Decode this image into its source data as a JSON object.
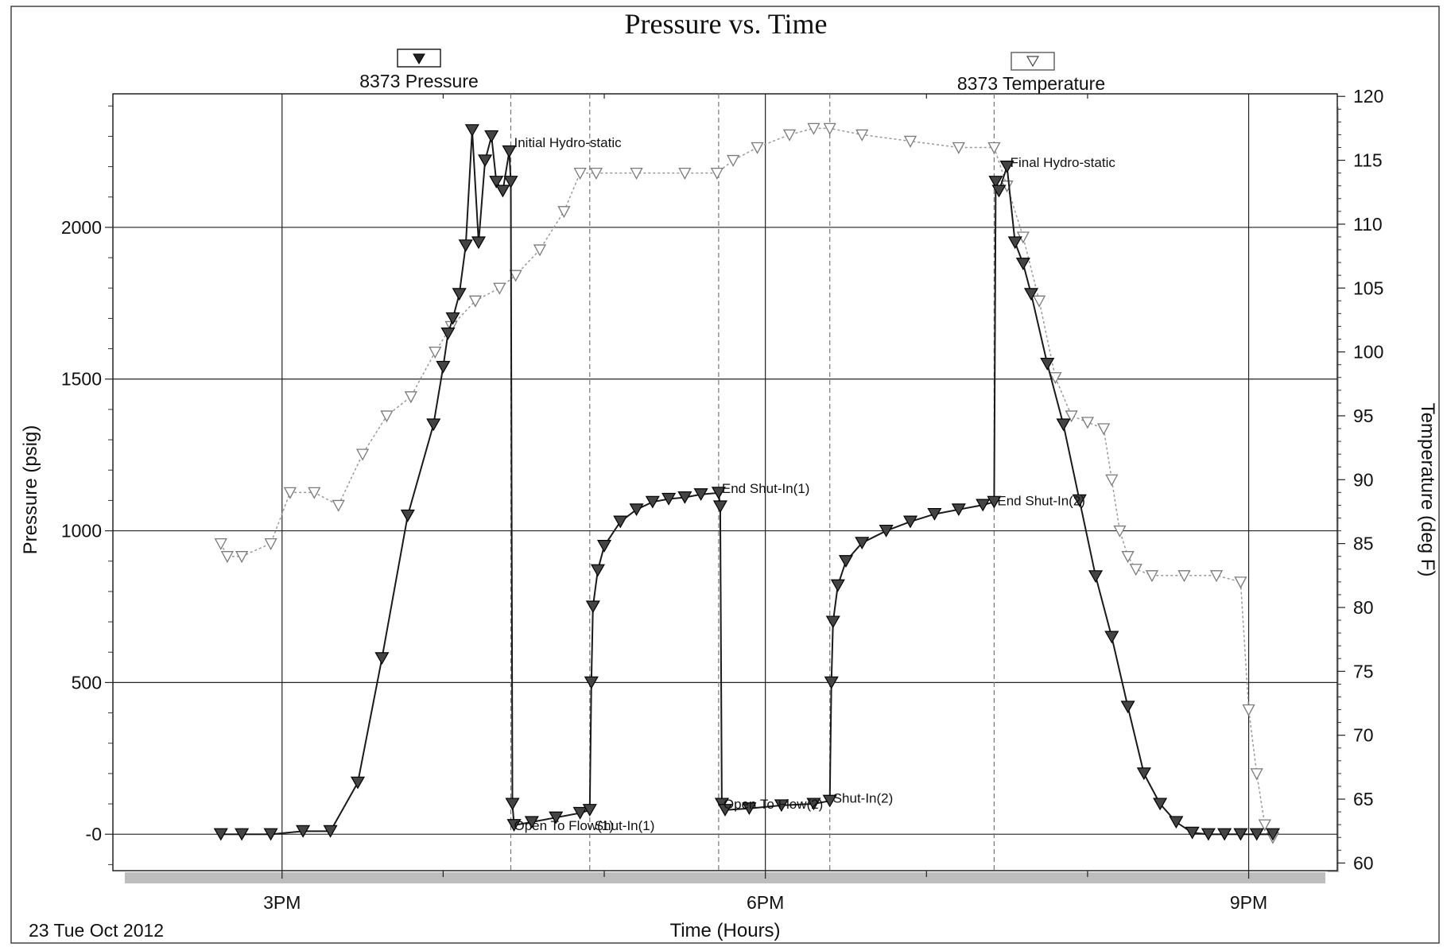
{
  "chart_data": {
    "type": "line",
    "title": "Pressure vs. Time",
    "xlabel": "Time (Hours)",
    "ylabel": "Pressure (psig)",
    "y2label": "Temperature (deg F)",
    "date_label": "23 Tue Oct 2012",
    "x_unit": "hours (clock time)",
    "xlim": [
      13.95,
      21.55
    ],
    "ylim": [
      -120,
      2440
    ],
    "y2lim": [
      59.4,
      120.2
    ],
    "x_ticks": [
      {
        "x": 15,
        "label": "3PM"
      },
      {
        "x": 18,
        "label": "6PM"
      },
      {
        "x": 21,
        "label": "9PM"
      }
    ],
    "x_minor_ticks": [
      16,
      17,
      19,
      20
    ],
    "y_ticks": [
      {
        "y": 0,
        "label": "-0"
      },
      {
        "y": 500,
        "label": "500"
      },
      {
        "y": 1000,
        "label": "1000"
      },
      {
        "y": 1500,
        "label": "1500"
      },
      {
        "y": 2000,
        "label": "2000"
      }
    ],
    "y2_ticks": [
      {
        "y": 60,
        "label": "60"
      },
      {
        "y": 65,
        "label": "65"
      },
      {
        "y": 70,
        "label": "70"
      },
      {
        "y": 75,
        "label": "75"
      },
      {
        "y": 80,
        "label": "80"
      },
      {
        "y": 85,
        "label": "85"
      },
      {
        "y": 90,
        "label": "90"
      },
      {
        "y": 95,
        "label": "95"
      },
      {
        "y": 100,
        "label": "100"
      },
      {
        "y": 105,
        "label": "105"
      },
      {
        "y": 110,
        "label": "110"
      },
      {
        "y": 115,
        "label": "115"
      },
      {
        "y": 120,
        "label": "120"
      }
    ],
    "grid": true,
    "event_lines": [
      16.42,
      16.91,
      17.71,
      18.4,
      19.42
    ],
    "legend": [
      {
        "label": "8373 Pressure",
        "marker": "filled-triangle-down",
        "axis": "left"
      },
      {
        "label": "8373 Temperature",
        "marker": "open-triangle-down",
        "axis": "right"
      }
    ],
    "annotations": [
      {
        "text": "Initial Hydro-static",
        "x": 16.42,
        "y": 2280
      },
      {
        "text": "Final Hydro-static",
        "x": 19.5,
        "y": 2215
      },
      {
        "text": "Open To Flow(1)",
        "x": 16.42,
        "y": 30
      },
      {
        "text": "Shut-In(1)",
        "x": 16.92,
        "y": 30
      },
      {
        "text": "End Shut-In(1)",
        "x": 17.71,
        "y": 1140
      },
      {
        "text": "Open To Flow(2)",
        "x": 17.72,
        "y": 100
      },
      {
        "text": "Shut-In(2)",
        "x": 18.4,
        "y": 120
      },
      {
        "text": "End Shut-In(2)",
        "x": 19.42,
        "y": 1100
      }
    ],
    "series": [
      {
        "name": "8373 Pressure",
        "axis": "left",
        "color": "#1a1a1a",
        "marker": "filled-triangle-down",
        "x": [
          14.62,
          14.75,
          14.93,
          15.13,
          15.3,
          15.47,
          15.62,
          15.78,
          15.94,
          16.0,
          16.03,
          16.06,
          16.1,
          16.14,
          16.18,
          16.22,
          16.26,
          16.3,
          16.33,
          16.37,
          16.41,
          16.42,
          16.43,
          16.44,
          16.55,
          16.7,
          16.85,
          16.91,
          16.92,
          16.93,
          16.96,
          17.0,
          17.1,
          17.2,
          17.3,
          17.4,
          17.5,
          17.6,
          17.71,
          17.72,
          17.73,
          17.75,
          17.9,
          18.1,
          18.3,
          18.4,
          18.41,
          18.42,
          18.45,
          18.5,
          18.6,
          18.75,
          18.9,
          19.05,
          19.2,
          19.35,
          19.42,
          19.43,
          19.45,
          19.5,
          19.55,
          19.6,
          19.65,
          19.75,
          19.85,
          19.95,
          20.05,
          20.15,
          20.25,
          20.35,
          20.45,
          20.55,
          20.65,
          20.75,
          20.85,
          20.95,
          21.05,
          21.15
        ],
        "y": [
          0,
          0,
          0,
          10,
          10,
          170,
          580,
          1050,
          1350,
          1540,
          1650,
          1700,
          1780,
          1940,
          2320,
          1950,
          2220,
          2300,
          2150,
          2120,
          2250,
          2150,
          100,
          30,
          40,
          55,
          70,
          80,
          500,
          750,
          870,
          950,
          1030,
          1070,
          1095,
          1105,
          1110,
          1120,
          1125,
          1080,
          100,
          80,
          85,
          95,
          100,
          110,
          500,
          700,
          820,
          900,
          960,
          1000,
          1030,
          1055,
          1070,
          1085,
          1095,
          2150,
          2120,
          2200,
          1950,
          1880,
          1780,
          1550,
          1350,
          1100,
          850,
          650,
          420,
          200,
          100,
          40,
          5,
          0,
          0,
          0,
          0,
          0
        ]
      },
      {
        "name": "8373 Temperature",
        "axis": "right",
        "color": "#8c8c8c",
        "marker": "open-triangle-down",
        "x": [
          14.62,
          14.66,
          14.75,
          14.93,
          15.05,
          15.2,
          15.35,
          15.5,
          15.65,
          15.8,
          15.95,
          16.05,
          16.2,
          16.35,
          16.45,
          16.6,
          16.75,
          16.85,
          16.95,
          17.2,
          17.5,
          17.7,
          17.8,
          17.95,
          18.15,
          18.3,
          18.4,
          18.6,
          18.9,
          19.2,
          19.42,
          19.5,
          19.6,
          19.7,
          19.8,
          19.9,
          20.0,
          20.1,
          20.15,
          20.2,
          20.25,
          20.3,
          20.4,
          20.6,
          20.8,
          20.95,
          21.0,
          21.05,
          21.1,
          21.15
        ],
        "y": [
          85,
          84,
          84,
          85,
          89,
          89,
          88,
          92,
          95,
          96.5,
          100,
          102,
          104,
          105,
          106,
          108,
          111,
          114,
          114,
          114,
          114,
          114,
          115,
          116,
          117,
          117.5,
          117.5,
          117,
          116.5,
          116,
          116,
          113,
          109,
          104,
          98,
          95,
          94.5,
          94,
          90,
          86,
          84,
          83,
          82.5,
          82.5,
          82.5,
          82,
          72,
          67,
          63,
          62
        ]
      }
    ]
  }
}
